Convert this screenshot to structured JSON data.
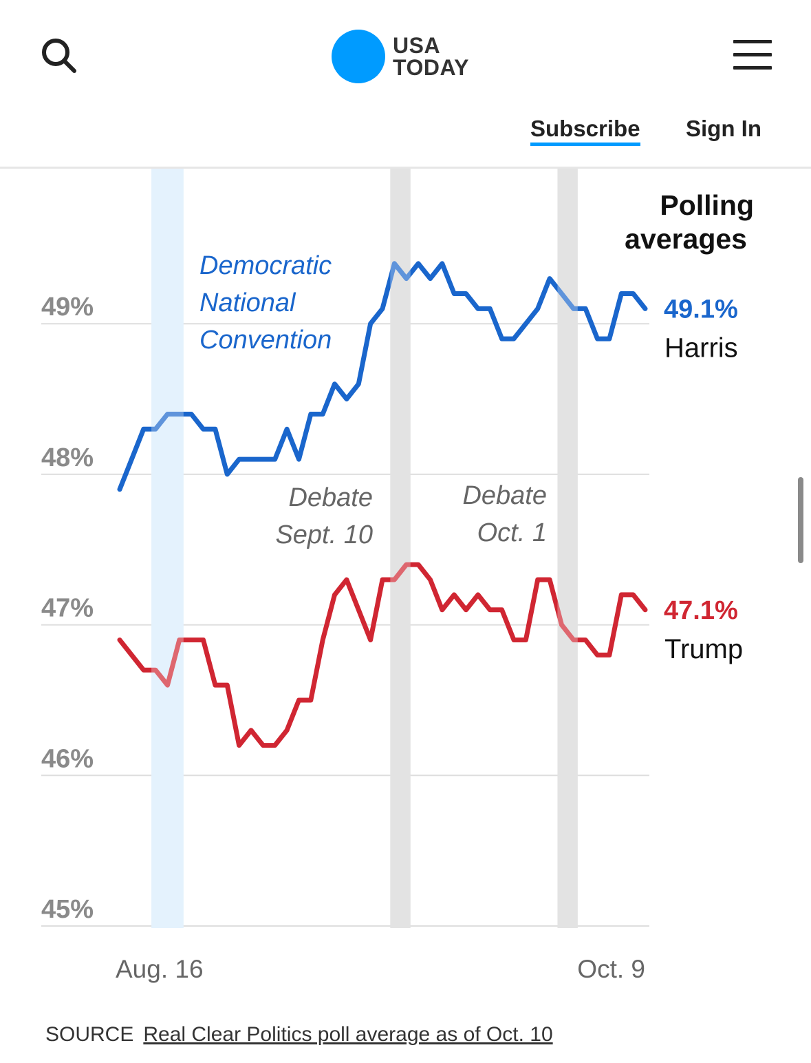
{
  "header": {
    "logo_line1": "USA",
    "logo_line2": "TODAY",
    "subscribe_label": "Subscribe",
    "signin_label": "Sign In",
    "search_icon": "search-icon",
    "menu_icon": "menu-icon",
    "brand_color": "#009bff"
  },
  "chart_data": {
    "type": "line",
    "title": "Polling averages",
    "xlabel": "",
    "ylabel": "",
    "ylim": [
      45,
      50.03
    ],
    "y_ticks": [
      45,
      46,
      47,
      48,
      49
    ],
    "y_tick_labels": [
      "45%",
      "46%",
      "47%",
      "48%",
      "49%"
    ],
    "x_tick_labels": [
      "Aug. 16",
      "Oct. 9"
    ],
    "grid": true,
    "series": [
      {
        "name": "Harris",
        "color": "#1a66cc",
        "end_label": "49.1%",
        "values": [
          47.9,
          48.1,
          48.3,
          48.3,
          48.4,
          48.4,
          48.4,
          48.3,
          48.3,
          48.0,
          48.1,
          48.1,
          48.1,
          48.1,
          48.3,
          48.1,
          48.4,
          48.4,
          48.6,
          48.5,
          48.6,
          49.0,
          49.1,
          49.4,
          49.3,
          49.4,
          49.3,
          49.4,
          49.2,
          49.2,
          49.1,
          49.1,
          48.9,
          48.9,
          49.0,
          49.1,
          49.3,
          49.2,
          49.1,
          49.1,
          48.9,
          48.9,
          49.2,
          49.2,
          49.1
        ]
      },
      {
        "name": "Trump",
        "color": "#d02632",
        "end_label": "47.1%",
        "values": [
          46.9,
          46.8,
          46.7,
          46.7,
          46.6,
          46.9,
          46.9,
          46.9,
          46.6,
          46.6,
          46.2,
          46.3,
          46.2,
          46.2,
          46.3,
          46.5,
          46.5,
          46.9,
          47.2,
          47.3,
          47.1,
          46.9,
          47.3,
          47.3,
          47.4,
          47.4,
          47.3,
          47.1,
          47.2,
          47.1,
          47.2,
          47.1,
          47.1,
          46.9,
          46.9,
          47.3,
          47.3,
          47.0,
          46.9,
          46.9,
          46.8,
          46.8,
          47.2,
          47.2,
          47.1
        ]
      }
    ],
    "annotations": [
      {
        "id": "dnc",
        "label": [
          "Democratic",
          "National",
          "Convention"
        ],
        "color": "#1a66cc",
        "band_color": "#d9edfc",
        "band_start_index": 3,
        "band_end_index": 5
      },
      {
        "id": "debate1",
        "label": [
          "Debate",
          "Sept. 10"
        ],
        "color": "#666666",
        "band_color": "#d7d7d7",
        "band_start_index": 23,
        "band_end_index": 24
      },
      {
        "id": "debate2",
        "label": [
          "Debate",
          "Oct. 1"
        ],
        "color": "#666666",
        "band_color": "#d7d7d7",
        "band_start_index": 37,
        "band_end_index": 38
      }
    ]
  },
  "footer": {
    "source_prefix": "SOURCE",
    "source_text": "Real Clear Politics poll average as of Oct. 10"
  }
}
